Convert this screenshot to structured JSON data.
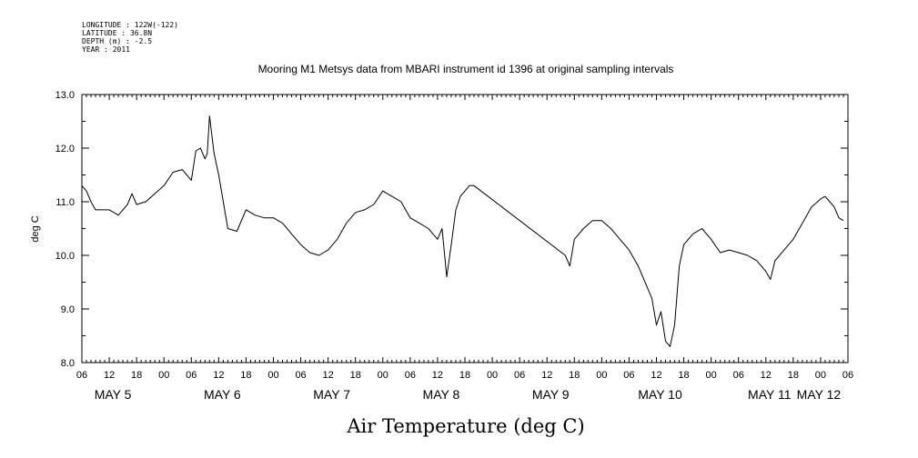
{
  "header": {
    "longitude": "LONGITUDE : 122W(-122)",
    "latitude": "LATITUDE : 36.8N",
    "depth": "DEPTH (m) : -2.5",
    "year": "YEAR : 2011"
  },
  "chart_data": {
    "type": "line",
    "title": "Mooring M1 Metsys data from MBARI instrument id 1396 at original sampling intervals",
    "xlabel": "Air Temperature (deg C)",
    "ylabel": "deg C",
    "ylim": [
      8.0,
      13.0
    ],
    "yticks": [
      "8.0",
      "9.0",
      "10.0",
      "11.0",
      "12.0",
      "13.0"
    ],
    "xlim_hours_label": "May 5 06:00 to May 12 06:00",
    "xticks": [
      "06",
      "12",
      "18",
      "00",
      "06",
      "12",
      "18",
      "00",
      "06",
      "12",
      "18",
      "00",
      "06",
      "12",
      "18",
      "00",
      "06",
      "12",
      "18",
      "00",
      "06",
      "12",
      "18",
      "00",
      "06",
      "12",
      "18",
      "00",
      "06"
    ],
    "day_labels": [
      "MAY  5",
      "MAY  6",
      "MAY  7",
      "MAY  8",
      "MAY  9",
      "MAY 10",
      "MAY 11",
      "MAY 12"
    ],
    "grid": false,
    "series": [
      {
        "x": [
          "05-06:00",
          "05-07:00",
          "05-08:00",
          "05-09:00",
          "05-10:00",
          "05-11:00",
          "05-12:00",
          "05-13:00",
          "05-14:00",
          "05-15:00",
          "05-16:00",
          "05-17:00",
          "05-18:00",
          "05-20:00",
          "05-22:00",
          "06-00:00",
          "06-02:00",
          "06-04:00",
          "06-05:00",
          "06-06:00",
          "06-07:00",
          "06-08:00",
          "06-09:00",
          "06-09:30",
          "06-10:00",
          "06-11:00",
          "06-12:00",
          "06-13:00",
          "06-14:00",
          "06-16:00",
          "06-18:00",
          "06-20:00",
          "06-22:00",
          "07-00:00",
          "07-02:00",
          "07-04:00",
          "07-06:00",
          "07-08:00",
          "07-10:00",
          "07-12:00",
          "07-14:00",
          "07-16:00",
          "07-18:00",
          "07-20:00",
          "07-22:00",
          "08-00:00",
          "08-02:00",
          "08-04:00",
          "08-06:00",
          "08-08:00",
          "08-10:00",
          "08-12:00",
          "08-13:00",
          "08-14:00",
          "08-15:00",
          "08-16:00",
          "08-17:00",
          "08-18:00",
          "08-19:00",
          "08-20:00",
          "09-16:00",
          "09-17:00",
          "09-18:00",
          "09-20:00",
          "09-22:00",
          "10-00:00",
          "10-02:00",
          "10-04:00",
          "10-06:00",
          "10-08:00",
          "10-10:00",
          "10-11:00",
          "10-12:00",
          "10-13:00",
          "10-14:00",
          "10-15:00",
          "10-16:00",
          "10-17:00",
          "10-18:00",
          "10-20:00",
          "10-22:00",
          "11-00:00",
          "11-02:00",
          "11-04:00",
          "11-06:00",
          "11-08:00",
          "11-10:00",
          "11-12:00",
          "11-13:00",
          "11-14:00",
          "11-16:00",
          "11-18:00",
          "11-20:00",
          "11-22:00",
          "12-00:00",
          "12-01:00",
          "12-02:00",
          "12-03:00",
          "12-04:00",
          "12-05:00"
        ],
        "values": [
          11.3,
          11.2,
          11.0,
          10.85,
          10.85,
          10.85,
          10.85,
          10.8,
          10.75,
          10.85,
          10.95,
          11.15,
          10.95,
          11.0,
          11.15,
          11.3,
          11.55,
          11.6,
          11.5,
          11.4,
          11.95,
          12.0,
          11.8,
          11.9,
          12.6,
          11.9,
          11.5,
          11.0,
          10.5,
          10.45,
          10.85,
          10.75,
          10.7,
          10.7,
          10.6,
          10.4,
          10.2,
          10.05,
          10.0,
          10.1,
          10.3,
          10.6,
          10.8,
          10.85,
          10.95,
          11.2,
          11.1,
          11.0,
          10.7,
          10.6,
          10.5,
          10.3,
          10.5,
          9.6,
          10.2,
          10.85,
          11.1,
          11.2,
          11.3,
          11.3,
          10.0,
          9.8,
          10.3,
          10.5,
          10.65,
          10.65,
          10.5,
          10.3,
          10.1,
          9.8,
          9.4,
          9.2,
          8.7,
          8.95,
          8.4,
          8.3,
          8.7,
          9.8,
          10.2,
          10.4,
          10.5,
          10.3,
          10.05,
          10.1,
          10.05,
          10.0,
          9.9,
          9.7,
          9.55,
          9.9,
          10.1,
          10.3,
          10.6,
          10.9,
          11.05,
          11.1,
          11.0,
          10.9,
          10.7,
          10.65
        ]
      }
    ]
  }
}
